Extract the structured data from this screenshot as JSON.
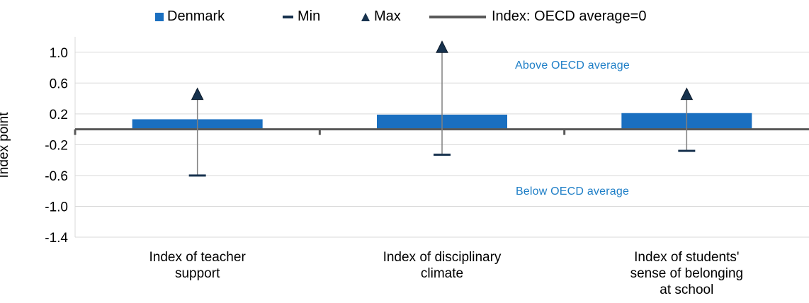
{
  "legend": {
    "denmark": "Denmark",
    "min": "Min",
    "max": "Max",
    "oecd_line": "Index: OECD average=0"
  },
  "colors": {
    "denmark_bar": "#1a6fc0",
    "marker": "#17324e",
    "oecd_line": "#595959",
    "grid": "#d9d9d9",
    "annotation": "#1f7fc7"
  },
  "annotations": {
    "above": "Above OECD average",
    "below": "Below OECD average"
  },
  "chart_data": {
    "type": "bar",
    "ylabel": "Index point",
    "ylim": [
      -1.4,
      1.2
    ],
    "yticks": [
      1.0,
      0.6,
      0.2,
      -0.2,
      -0.6,
      -1.0,
      -1.4
    ],
    "ytick_labels": [
      "1.0",
      "0.6",
      "0.2",
      "-0.2",
      "-0.6",
      "-1.0",
      "-1.4"
    ],
    "grid": true,
    "legend_position": "top",
    "categories": [
      [
        "Index of teacher",
        "support"
      ],
      [
        "Index of disciplinary",
        "climate"
      ],
      [
        "Index of students'",
        "sense of belonging",
        "at school"
      ]
    ],
    "series": [
      {
        "name": "Denmark",
        "values": [
          0.13,
          0.19,
          0.21
        ]
      },
      {
        "name": "Min",
        "values": [
          -0.6,
          -0.33,
          -0.28
        ]
      },
      {
        "name": "Max",
        "values": [
          0.45,
          1.06,
          0.45
        ]
      }
    ],
    "reference_line": {
      "name": "Index: OECD average=0",
      "value": 0
    }
  }
}
